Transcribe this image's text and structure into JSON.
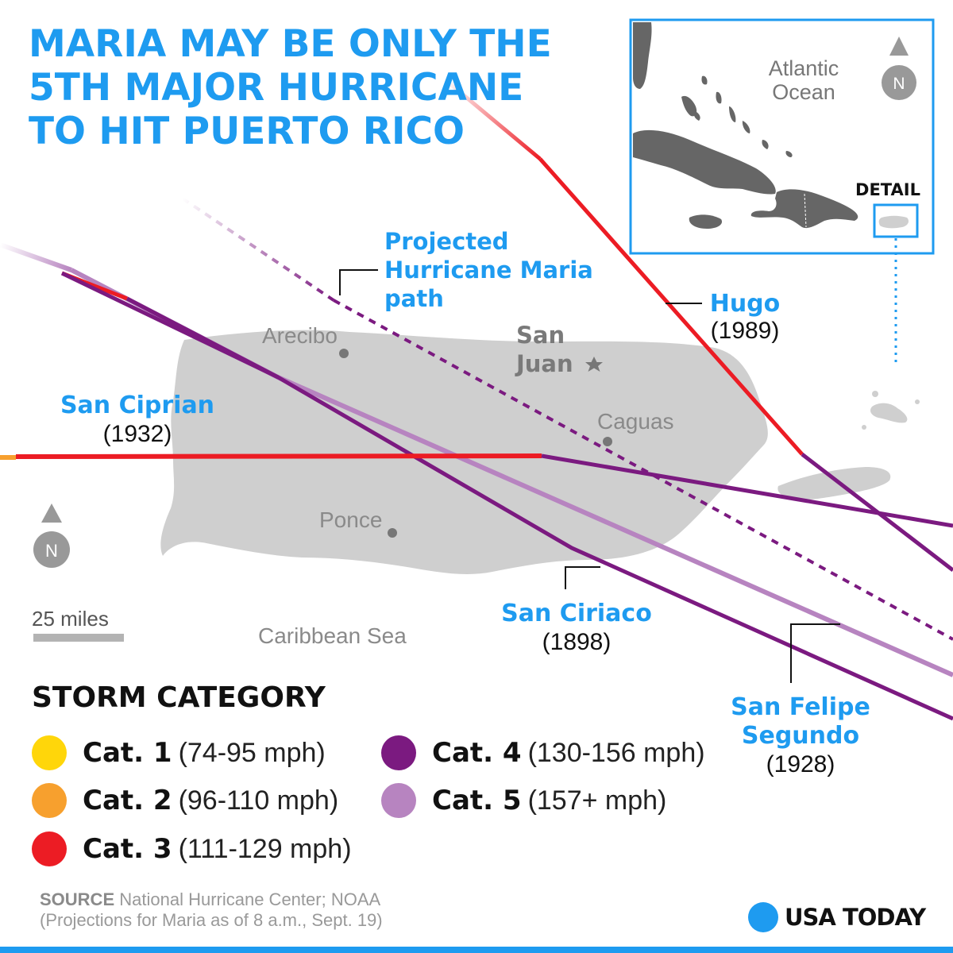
{
  "title": {
    "lines": [
      "MARIA MAY BE ONLY THE",
      "5TH MAJOR HURRICANE",
      "TO HIT PUERTO RICO"
    ]
  },
  "map": {
    "cities": {
      "arecibo": "Arecibo",
      "san_juan_1": "San",
      "san_juan_2": "Juan",
      "caguas": "Caguas",
      "ponce": "Ponce"
    },
    "water": {
      "caribbean": "Caribbean Sea"
    },
    "scale": {
      "label": "25 miles"
    },
    "north": "N"
  },
  "storms": {
    "maria": {
      "line1": "Projected",
      "line2": "Hurricane Maria",
      "line3": "path"
    },
    "hugo": {
      "name": "Hugo",
      "year": "(1989)"
    },
    "san_ciprian": {
      "name": "San Ciprian",
      "year": "(1932)"
    },
    "san_ciriaco": {
      "name": "San Ciriaco",
      "year": "(1898)"
    },
    "san_felipe": {
      "name1": "San Felipe",
      "name2": "Segundo",
      "year": "(1928)"
    }
  },
  "inset": {
    "ocean_1": "Atlantic",
    "ocean_2": "Ocean",
    "north": "N",
    "detail": "DETAIL"
  },
  "legend": {
    "title": "STORM CATEGORY",
    "items": [
      {
        "cat": "Cat. 1",
        "range": "(74-95 mph)",
        "color": "#ffd60a"
      },
      {
        "cat": "Cat. 2",
        "range": "(96-110 mph)",
        "color": "#f7a02e"
      },
      {
        "cat": "Cat. 3",
        "range": "(111-129 mph)",
        "color": "#ec1c24"
      },
      {
        "cat": "Cat. 4",
        "range": "(130-156 mph)",
        "color": "#7b1a80"
      },
      {
        "cat": "Cat. 5",
        "range": "(157+ mph)",
        "color": "#b784c0"
      }
    ]
  },
  "source": {
    "label": "SOURCE",
    "text": "National Hurricane Center; NOAA",
    "note": "(Projections for Maria as of 8 a.m., Sept. 19)"
  },
  "brand": {
    "name": "USA TODAY"
  },
  "colors": {
    "accent": "#1e9bf0",
    "land": "#cfcfcf",
    "inset_land": "#666666"
  }
}
